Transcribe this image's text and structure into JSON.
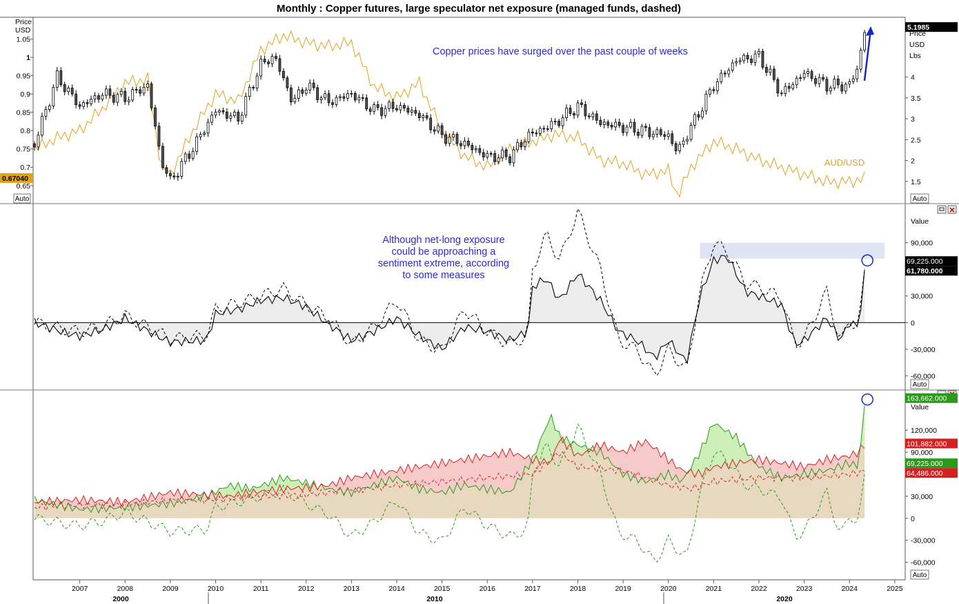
{
  "title": "Monthly : Copper futures, large speculator net exposure (managed funds, dashed)",
  "auto_label": "Auto",
  "colors": {
    "copper": "#000000",
    "audusd": "#e0a21a",
    "blue_arrow": "#1428c8",
    "net_solid": "#000000",
    "long": "#2a9a1a",
    "short": "#d42020",
    "fill_long": "#cdeeb8",
    "fill_short": "#f6c4c4",
    "fill_common": "#e7d8bf",
    "zone": "#dfe3f6",
    "annotation": "#2b2bd8"
  },
  "chart_data": [
    {
      "id": "price-panel",
      "type": "line",
      "left_axis": {
        "label_lines": [
          "Price",
          "USD"
        ],
        "ticks": [
          "1.05",
          "1",
          "0.95",
          "0.9",
          "0.85",
          "0.8",
          "0.75",
          "0.7",
          "0.65"
        ],
        "range": [
          0.61,
          1.1
        ]
      },
      "right_axis": {
        "label_lines": [
          "Price",
          "USD",
          "Lbs"
        ],
        "ticks": [
          "4",
          "3.5",
          "3",
          "2.5",
          "2",
          "1.5"
        ],
        "range": [
          1.05,
          5.35
        ]
      },
      "last_value_tags": {
        "copper": "5.1985",
        "audusd": "0.67040"
      },
      "series": [
        {
          "name": "",
          "kind": "candlestick",
          "axis": "right",
          "x": [
            2006.0,
            2006.5,
            2007.0,
            2007.5,
            2008.0,
            2008.5,
            2008.8,
            2009.0,
            2009.5,
            2010.0,
            2010.5,
            2011.0,
            2011.3,
            2011.7,
            2012.0,
            2012.5,
            2013.0,
            2013.5,
            2014.0,
            2014.5,
            2015.0,
            2015.5,
            2016.0,
            2016.5,
            2016.9,
            2017.5,
            2018.0,
            2018.5,
            2019.0,
            2019.5,
            2020.0,
            2020.2,
            2020.5,
            2021.0,
            2021.5,
            2022.0,
            2022.5,
            2023.0,
            2023.5,
            2024.0,
            2024.2,
            2024.35
          ],
          "y": [
            2.4,
            4.0,
            3.3,
            3.6,
            3.5,
            3.8,
            2.0,
            1.5,
            2.3,
            3.2,
            3.0,
            4.3,
            4.5,
            3.4,
            3.8,
            3.4,
            3.6,
            3.2,
            3.3,
            3.1,
            2.6,
            2.4,
            2.1,
            2.1,
            2.6,
            2.9,
            3.3,
            2.9,
            2.8,
            2.7,
            2.6,
            2.2,
            2.8,
            3.8,
            4.4,
            4.5,
            3.6,
            4.1,
            3.8,
            3.8,
            4.3,
            5.2
          ]
        },
        {
          "name": "AUD/USD",
          "kind": "line",
          "axis": "left",
          "x": [
            2006.0,
            2006.5,
            2007.0,
            2007.5,
            2008.0,
            2008.5,
            2008.8,
            2009.0,
            2009.5,
            2010.0,
            2010.5,
            2011.0,
            2011.5,
            2012.0,
            2012.5,
            2013.0,
            2013.5,
            2014.0,
            2014.5,
            2015.0,
            2015.5,
            2016.0,
            2016.5,
            2017.0,
            2017.5,
            2018.0,
            2018.5,
            2019.0,
            2019.5,
            2020.0,
            2020.2,
            2020.5,
            2021.0,
            2021.5,
            2022.0,
            2022.5,
            2023.0,
            2023.5,
            2024.0,
            2024.35
          ],
          "y": [
            0.75,
            0.78,
            0.8,
            0.86,
            0.93,
            0.94,
            0.7,
            0.68,
            0.8,
            0.9,
            0.88,
            1.02,
            1.06,
            1.04,
            1.03,
            1.04,
            0.92,
            0.89,
            0.93,
            0.8,
            0.73,
            0.7,
            0.75,
            0.77,
            0.79,
            0.78,
            0.72,
            0.71,
            0.68,
            0.69,
            0.62,
            0.7,
            0.77,
            0.75,
            0.72,
            0.7,
            0.68,
            0.66,
            0.66,
            0.67
          ]
        }
      ],
      "annotations": [
        "Copper prices have surged over the past couple of weeks"
      ],
      "series_labels": [
        "AUD/USD"
      ]
    },
    {
      "id": "net-exposure-panel",
      "type": "line",
      "axis_title": "Value",
      "ticks": [
        "90,000",
        "30,000",
        "0",
        "-30,000",
        "-60,000"
      ],
      "range": [
        -72000,
        130000
      ],
      "last_value_tags": [
        "69,225.000",
        "61,780.000"
      ],
      "series": [
        {
          "name": "",
          "kind": "solid",
          "x": [
            2006.0,
            2006.7,
            2007.0,
            2007.5,
            2008.0,
            2008.7,
            2009.0,
            2009.8,
            2010.0,
            2010.5,
            2011.0,
            2011.5,
            2012.0,
            2012.5,
            2013.0,
            2013.5,
            2014.0,
            2014.5,
            2015.0,
            2015.5,
            2016.0,
            2016.5,
            2016.9,
            2017.0,
            2017.3,
            2017.6,
            2018.0,
            2018.5,
            2018.9,
            2019.3,
            2019.7,
            2020.0,
            2020.4,
            2020.7,
            2021.0,
            2021.3,
            2021.7,
            2022.0,
            2022.5,
            2022.8,
            2023.0,
            2023.5,
            2023.8,
            2024.0,
            2024.2,
            2024.35
          ],
          "y": [
            0,
            -12000,
            -15000,
            -8000,
            5000,
            -15000,
            -22000,
            -20000,
            10000,
            15000,
            25000,
            28000,
            18000,
            -2000,
            -20000,
            -10000,
            5000,
            -15000,
            -30000,
            -5000,
            -10000,
            -20000,
            -10000,
            40000,
            50000,
            25000,
            55000,
            25000,
            -10000,
            -20000,
            -40000,
            -20000,
            -45000,
            30000,
            70000,
            75000,
            35000,
            30000,
            20000,
            -25000,
            -20000,
            5000,
            -20000,
            0,
            -5000,
            61780
          ]
        },
        {
          "name": "",
          "kind": "dashed",
          "x": [
            2006.0,
            2006.7,
            2007.0,
            2007.5,
            2008.0,
            2008.7,
            2009.0,
            2009.8,
            2010.0,
            2010.5,
            2011.0,
            2011.5,
            2012.0,
            2012.5,
            2013.0,
            2013.5,
            2014.0,
            2014.5,
            2015.0,
            2015.5,
            2016.0,
            2016.5,
            2016.9,
            2017.0,
            2017.3,
            2017.6,
            2018.0,
            2018.5,
            2018.9,
            2019.3,
            2019.7,
            2020.0,
            2020.4,
            2020.7,
            2021.0,
            2021.3,
            2021.7,
            2022.0,
            2022.5,
            2022.8,
            2023.0,
            2023.5,
            2023.8,
            2024.0,
            2024.2,
            2024.35
          ],
          "y": [
            0,
            -8000,
            -10000,
            -4000,
            8000,
            -10000,
            -18000,
            -15000,
            15000,
            22000,
            30000,
            38000,
            20000,
            5000,
            -25000,
            -5000,
            25000,
            -20000,
            -32000,
            15000,
            -10000,
            -25000,
            -15000,
            60000,
            100000,
            70000,
            125000,
            60000,
            -20000,
            -30000,
            -60000,
            -30000,
            -55000,
            35000,
            90000,
            80000,
            45000,
            40000,
            28000,
            -25000,
            -18000,
            35000,
            -25000,
            5000,
            -10000,
            69225
          ]
        }
      ],
      "highlight_band": {
        "x": [
          2020.7,
          2024.35
        ],
        "y": [
          72000,
          90000
        ]
      },
      "annotations": [
        "Although net-long exposure",
        "could be approaching a",
        "sentiment extreme, according",
        "to some measures"
      ]
    },
    {
      "id": "long-short-panel",
      "type": "area",
      "axis_title": "Value",
      "ticks": [
        "120,000",
        "90,000",
        "30,000",
        "0",
        "-30,000",
        "-60,000"
      ],
      "range": [
        -82000,
        170000
      ],
      "last_value_tags": [
        "163,662.000",
        "101,882.000",
        "69,225.000",
        "64,486.000"
      ],
      "series": [
        {
          "name": "",
          "kind": "long",
          "color": "#2a9a1a",
          "x": [
            2006.0,
            2007.0,
            2008.0,
            2009.0,
            2009.8,
            2010.3,
            2010.8,
            2011.5,
            2012.0,
            2012.5,
            2013.0,
            2013.5,
            2014.0,
            2014.5,
            2015.0,
            2015.5,
            2016.0,
            2016.5,
            2017.0,
            2017.4,
            2017.6,
            2018.0,
            2018.5,
            2019.0,
            2019.5,
            2020.0,
            2020.3,
            2020.7,
            2021.0,
            2021.5,
            2022.0,
            2022.5,
            2023.0,
            2023.5,
            2024.0,
            2024.2,
            2024.35
          ],
          "y": [
            25000,
            12000,
            15000,
            20000,
            30000,
            45000,
            40000,
            55000,
            48000,
            40000,
            35000,
            45000,
            55000,
            40000,
            35000,
            45000,
            40000,
            35000,
            80000,
            140000,
            110000,
            100000,
            90000,
            60000,
            50000,
            60000,
            50000,
            90000,
            130000,
            110000,
            70000,
            55000,
            60000,
            65000,
            75000,
            70000,
            163662
          ]
        },
        {
          "name": "",
          "kind": "short",
          "color": "#d42020",
          "x": [
            2006.0,
            2007.0,
            2008.0,
            2009.0,
            2009.8,
            2010.3,
            2010.8,
            2011.5,
            2012.0,
            2012.5,
            2013.0,
            2013.5,
            2014.0,
            2014.5,
            2015.0,
            2015.5,
            2016.0,
            2016.5,
            2017.0,
            2017.4,
            2017.6,
            2018.0,
            2018.5,
            2019.0,
            2019.5,
            2020.0,
            2020.3,
            2020.7,
            2021.0,
            2021.5,
            2022.0,
            2022.5,
            2023.0,
            2023.5,
            2024.0,
            2024.2,
            2024.35
          ],
          "y": [
            22000,
            25000,
            22000,
            35000,
            32000,
            30000,
            35000,
            40000,
            42000,
            45000,
            55000,
            60000,
            65000,
            70000,
            75000,
            80000,
            85000,
            90000,
            80000,
            75000,
            110000,
            85000,
            100000,
            90000,
            105000,
            80000,
            65000,
            60000,
            70000,
            75000,
            80000,
            75000,
            70000,
            80000,
            85000,
            90000,
            101882
          ]
        },
        {
          "name": "",
          "kind": "net-dashed",
          "color": "#2a9a1a",
          "x": [
            2006.0,
            2006.7,
            2007.0,
            2007.5,
            2008.0,
            2008.7,
            2009.0,
            2009.8,
            2010.0,
            2010.5,
            2011.0,
            2011.5,
            2012.0,
            2012.5,
            2013.0,
            2013.5,
            2014.0,
            2014.5,
            2015.0,
            2015.5,
            2016.0,
            2016.5,
            2016.9,
            2017.0,
            2017.3,
            2017.6,
            2018.0,
            2018.5,
            2018.9,
            2019.3,
            2019.7,
            2020.0,
            2020.4,
            2020.7,
            2021.0,
            2021.3,
            2021.7,
            2022.0,
            2022.5,
            2022.8,
            2023.0,
            2023.5,
            2023.8,
            2024.0,
            2024.2,
            2024.35
          ],
          "y": [
            0,
            -8000,
            -10000,
            -4000,
            8000,
            -10000,
            -18000,
            -15000,
            15000,
            22000,
            30000,
            38000,
            20000,
            5000,
            -25000,
            -5000,
            25000,
            -20000,
            -32000,
            15000,
            -10000,
            -25000,
            -15000,
            60000,
            100000,
            70000,
            125000,
            60000,
            -20000,
            -30000,
            -60000,
            -30000,
            -55000,
            35000,
            90000,
            80000,
            45000,
            40000,
            28000,
            -25000,
            -18000,
            35000,
            -25000,
            5000,
            -10000,
            69225
          ]
        },
        {
          "name": "",
          "kind": "short-dashed",
          "color": "#d42020",
          "x": [
            2006.0,
            2007.0,
            2008.0,
            2009.0,
            2010.0,
            2011.0,
            2012.0,
            2013.0,
            2014.0,
            2015.0,
            2016.0,
            2017.0,
            2017.6,
            2018.0,
            2019.0,
            2020.0,
            2020.5,
            2021.0,
            2022.0,
            2023.0,
            2024.0,
            2024.35
          ],
          "y": [
            15000,
            18000,
            18000,
            25000,
            25000,
            30000,
            32000,
            38000,
            45000,
            50000,
            55000,
            60000,
            90000,
            70000,
            65000,
            45000,
            40000,
            50000,
            55000,
            55000,
            60000,
            64486
          ]
        }
      ]
    }
  ],
  "x_axis": {
    "year_ticks": [
      "2007",
      "2008",
      "2009",
      "2010",
      "2011",
      "2012",
      "2013",
      "2014",
      "2015",
      "2016",
      "2017",
      "2018",
      "2019",
      "2020",
      "2021",
      "2022",
      "2023",
      "2024",
      "2025"
    ],
    "decade_labels": [
      "2000",
      "2010",
      "2020"
    ]
  }
}
